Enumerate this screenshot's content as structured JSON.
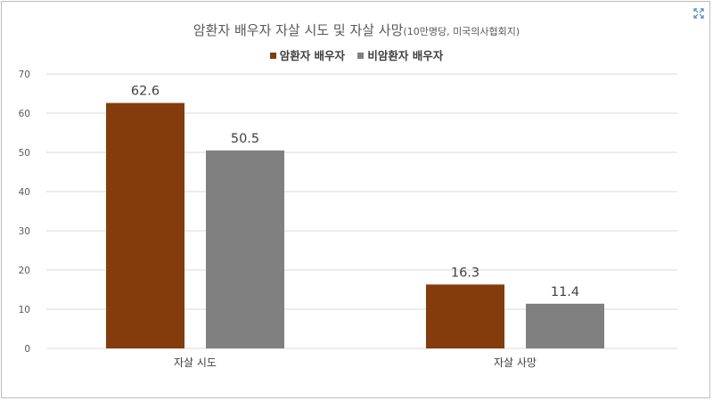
{
  "title": "암환자 배우자 자살 시도 및 자살 사망",
  "subtitle": "(10만명당, 미국의사협회지)",
  "colors": {
    "cancer": "#843c0c",
    "noncancer": "#808080",
    "grid": "#d9d9d9",
    "text": "#404040"
  },
  "icons": {
    "expand": "expand-icon"
  },
  "chart_data": {
    "type": "bar",
    "categories": [
      "자살 시도",
      "자살 사망"
    ],
    "series": [
      {
        "name": "암환자 배우자",
        "values": [
          62.6,
          16.3
        ],
        "labels": [
          "62.6",
          "16.3"
        ]
      },
      {
        "name": "비암환자 배우자",
        "values": [
          50.5,
          11.4
        ],
        "labels": [
          "50.5",
          "11.4"
        ]
      }
    ],
    "ylim": [
      0,
      70
    ],
    "yticks": [
      "0",
      "10",
      "20",
      "30",
      "40",
      "50",
      "60",
      "70"
    ],
    "grid": true,
    "legend_position": "top"
  }
}
